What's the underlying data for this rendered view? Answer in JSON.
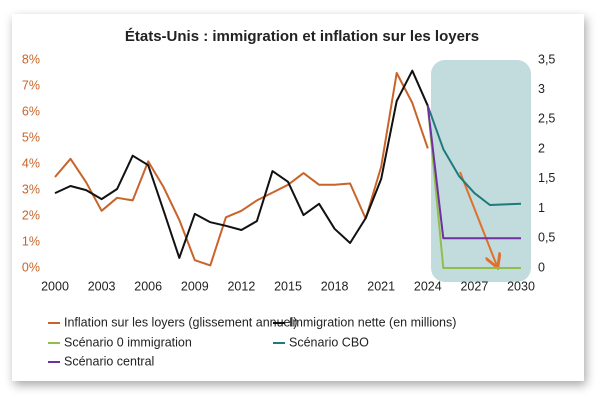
{
  "chart_data": {
    "type": "line",
    "title": "États-Unis : immigration et inflation sur les loyers",
    "xlim": [
      2000,
      2030
    ],
    "xticks": [
      2000,
      2003,
      2006,
      2009,
      2012,
      2015,
      2018,
      2021,
      2024,
      2027,
      2030
    ],
    "ylim": [
      0,
      8
    ],
    "yticks": [
      {
        "value": 0,
        "label": "0%"
      },
      {
        "value": 1,
        "label": "1%"
      },
      {
        "value": 2,
        "label": "2%"
      },
      {
        "value": 3,
        "label": "3%"
      },
      {
        "value": 4,
        "label": "4%"
      },
      {
        "value": 5,
        "label": "5%"
      },
      {
        "value": 6,
        "label": "6%"
      },
      {
        "value": 7,
        "label": "7%"
      },
      {
        "value": 8,
        "label": "8%"
      }
    ],
    "y2lim": [
      0,
      3.5
    ],
    "y2ticks": [
      0,
      {
        "value": 0.5,
        "label": "0,5"
      },
      1,
      {
        "value": 1.5,
        "label": "1,5"
      },
      2,
      {
        "value": 2.5,
        "label": "2,5"
      },
      3,
      {
        "value": 3.5,
        "label": "3,5"
      }
    ],
    "grid": false,
    "series": [
      {
        "name": "Inflation sur les loyers (glissement annuel)",
        "color": "#c8642a",
        "x": [
          2000,
          2001,
          2002,
          2003,
          2004,
          2005,
          2006,
          2007,
          2008,
          2009,
          2010,
          2011,
          2012,
          2013,
          2014,
          2015,
          2016,
          2017,
          2018,
          2019,
          2020,
          2021,
          2022,
          2023,
          2024
        ],
        "values": [
          3.5,
          4.2,
          3.3,
          2.2,
          2.7,
          2.6,
          4.1,
          3.1,
          1.85,
          0.3,
          0.1,
          1.95,
          2.2,
          2.6,
          2.9,
          3.2,
          3.65,
          3.2,
          3.2,
          3.25,
          1.9,
          3.9,
          7.5,
          6.35,
          4.6
        ]
      },
      {
        "name": "Immigration nette (en millions)",
        "color": "#111111",
        "axis": "y2",
        "x": [
          2000,
          2001,
          2002,
          2003,
          2004,
          2005,
          2006,
          2007,
          2008,
          2009,
          2010,
          2011,
          2012,
          2013,
          2014,
          2015,
          2016,
          2017,
          2018,
          2019,
          2020,
          2021,
          2022,
          2023,
          2024
        ],
        "values": [
          1.26,
          1.38,
          1.31,
          1.16,
          1.33,
          1.89,
          1.73,
          0.96,
          0.17,
          0.91,
          0.77,
          0.71,
          0.64,
          0.79,
          1.63,
          1.45,
          0.89,
          1.08,
          0.66,
          0.42,
          0.84,
          1.5,
          2.81,
          3.32,
          2.73
        ]
      },
      {
        "name": "Scénario 0 immigration",
        "color": "#8fbf4a",
        "axis": "y2",
        "x": [
          2024,
          2025,
          2026,
          2027,
          2028,
          2029,
          2030
        ],
        "values": [
          2.73,
          0,
          0,
          0,
          0,
          0,
          0
        ]
      },
      {
        "name": "Scénario CBO",
        "color": "#1f7a7a",
        "axis": "y2",
        "x": [
          2024,
          2025,
          2026,
          2027,
          2028,
          2029,
          2030
        ],
        "values": [
          2.73,
          2.0,
          1.55,
          1.26,
          1.06,
          1.07,
          1.08
        ]
      },
      {
        "name": "Scénario central",
        "color": "#7030a0",
        "axis": "y2",
        "x": [
          2024,
          2025,
          2026,
          2027,
          2028,
          2029,
          2030
        ],
        "values": [
          2.73,
          0.5,
          0.5,
          0.5,
          0.5,
          0.5,
          0.5
        ]
      }
    ]
  }
}
